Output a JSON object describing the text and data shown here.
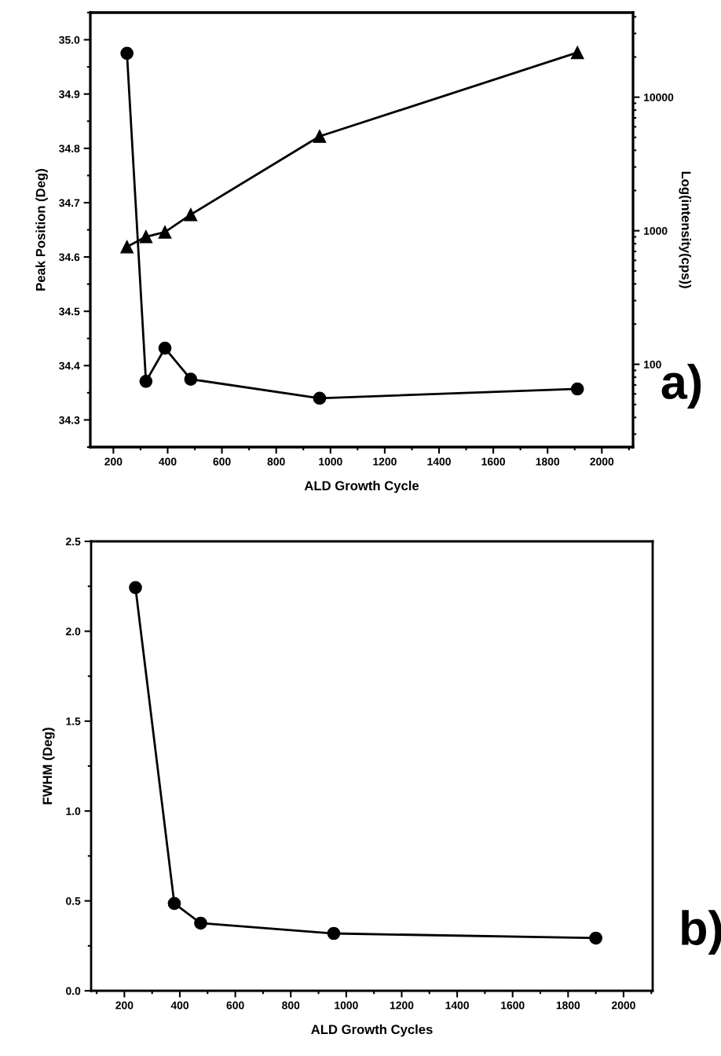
{
  "chart_data": [
    {
      "type": "line",
      "xlabel": "ALD Growth Cycle",
      "ylabel": "Peak Position (Deg)",
      "y2label": "Log(intensity(cps))",
      "annotations": [
        "a)"
      ],
      "log": "y2",
      "grid": false,
      "xlim": [
        115,
        2115
      ],
      "xticks": [
        200,
        400,
        600,
        800,
        1000,
        1200,
        1400,
        1600,
        1800,
        2000
      ],
      "ylim": [
        34.25,
        35.05
      ],
      "yticks": [
        34.3,
        34.4,
        34.5,
        34.6,
        34.7,
        34.8,
        34.9,
        {
          "value": 35,
          "label": "35.0"
        }
      ],
      "y2lim": [
        24,
        43000
      ],
      "y2ticks": [
        100,
        1000,
        10000
      ],
      "series": [
        {
          "color": "#000000",
          "marker": "circle",
          "x": [
            250,
            320,
            390,
            485,
            960,
            1910
          ],
          "values": [
            34.975,
            34.371,
            34.432,
            34.375,
            34.34,
            34.357
          ]
        },
        {
          "color": "#000000",
          "marker": "triangle",
          "axis": "y2",
          "x": [
            250,
            320,
            390,
            485,
            960,
            1910
          ],
          "values": [
            757,
            902,
            977,
            1321,
            5090,
            21600
          ]
        }
      ]
    },
    {
      "type": "line",
      "xlabel": "ALD Growth Cycles",
      "ylabel": "FWHM (Deg)",
      "annotations": [
        "b)"
      ],
      "grid": false,
      "xlim": [
        80,
        2105
      ],
      "xticks": [
        200,
        400,
        600,
        800,
        1000,
        1200,
        1400,
        1600,
        1800,
        2000
      ],
      "ylim": [
        0,
        2.5
      ],
      "yticks": [
        {
          "value": 0,
          "label": "0.0"
        },
        0.5,
        {
          "value": 1,
          "label": "1.0"
        },
        1.5,
        {
          "value": 2,
          "label": "2.0"
        },
        2.5
      ],
      "series": [
        {
          "color": "#000000",
          "marker": "circle",
          "x": [
            240,
            380,
            475,
            955,
            1900
          ],
          "values": [
            2.243,
            0.486,
            0.376,
            0.319,
            0.293
          ]
        }
      ]
    }
  ]
}
